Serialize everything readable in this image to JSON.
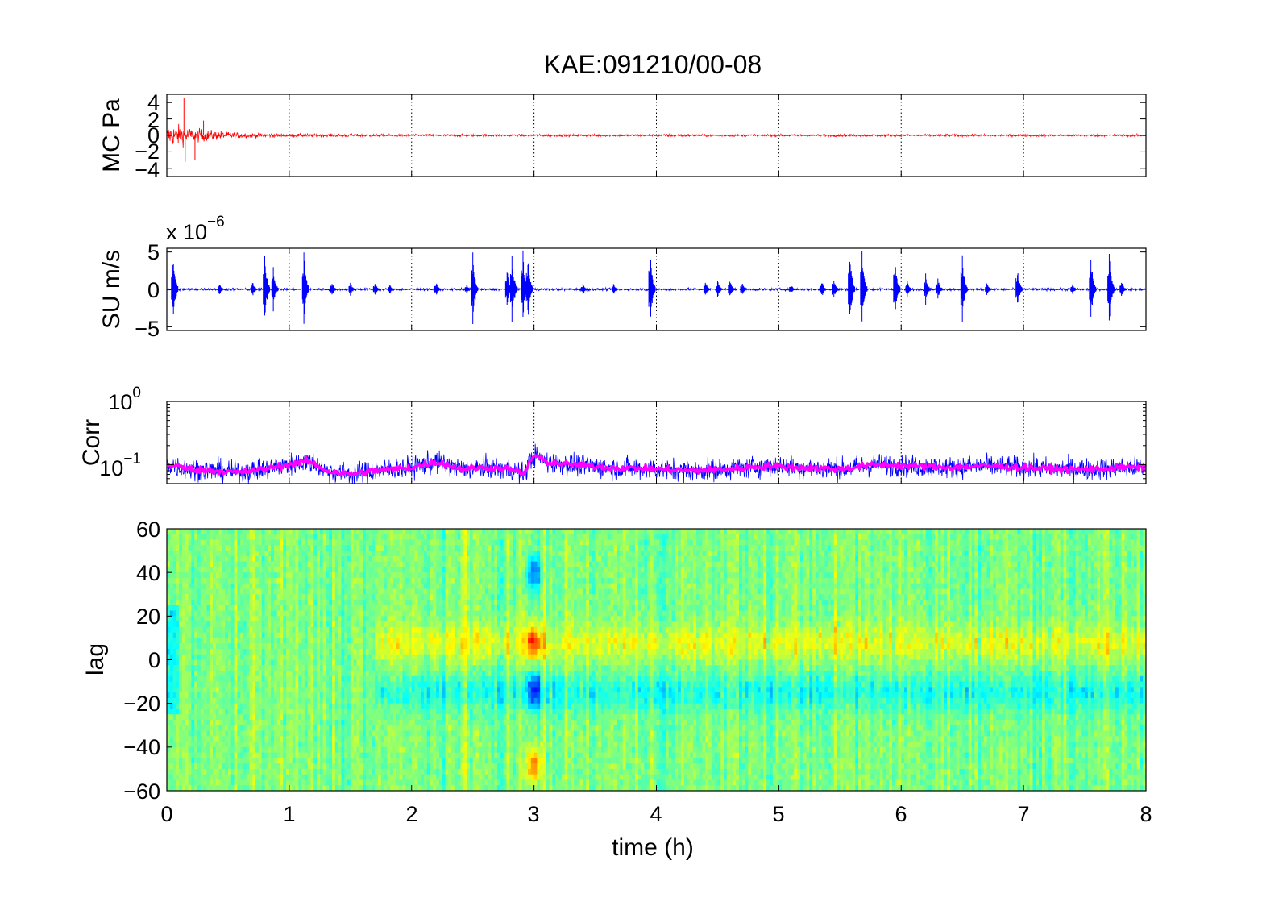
{
  "colors": {
    "mc_trace": "#ff0000",
    "su_trace": "#0000ff",
    "corr_raw": "#0000ff",
    "corr_smooth": "#ff00ff"
  },
  "chart_data": [
    {
      "type": "line",
      "title": "KAE:091210/00-08",
      "ylabel": "MC Pa",
      "xlim": [
        0,
        8
      ],
      "ylim": [
        -5,
        5
      ],
      "yticks": [
        "4",
        "2",
        "0",
        "−2",
        "−4"
      ],
      "grid": "x",
      "series": [
        {
          "color": "#ff0000",
          "envelope": {
            "x": [
              0,
              0.05,
              0.1,
              0.15,
              0.2,
              0.3,
              0.4,
              0.5,
              0.6,
              0.8,
              1.0,
              1.5,
              2.0,
              3.0,
              4.0,
              4.25,
              4.3,
              5.0,
              6.0,
              7.0,
              8.0
            ],
            "amplitude": [
              2.0,
              2.3,
              2.2,
              1.9,
              1.6,
              1.3,
              1.0,
              0.8,
              0.6,
              0.45,
              0.35,
              0.3,
              0.25,
              0.25,
              0.25,
              0.35,
              0.25,
              0.25,
              0.25,
              0.25,
              0.25
            ]
          },
          "spikes": [
            {
              "x": 0.14,
              "y": 4.6
            },
            {
              "x": 0.15,
              "y": -3.2
            },
            {
              "x": 0.23,
              "y": -3.0
            },
            {
              "x": 0.3,
              "y": 1.8
            }
          ]
        }
      ]
    },
    {
      "type": "line",
      "ylabel": "SU m/s",
      "y_multiplier": "x 10",
      "y_multiplier_exponent": "−6",
      "xlim": [
        0,
        8
      ],
      "ylim": [
        -5.5,
        5.5
      ],
      "yticks": [
        "5",
        "0",
        "−5"
      ],
      "grid": "x",
      "series": [
        {
          "color": "#0000ff",
          "baseline_amplitude": 0.15,
          "bursts": [
            {
              "x": 0.05,
              "amp": 5.3
            },
            {
              "x": 0.43,
              "amp": 1.0
            },
            {
              "x": 0.7,
              "amp": 1.2
            },
            {
              "x": 0.8,
              "amp": 5.0
            },
            {
              "x": 0.87,
              "amp": 3.2
            },
            {
              "x": 1.12,
              "amp": 5.0
            },
            {
              "x": 1.35,
              "amp": 1.0
            },
            {
              "x": 1.5,
              "amp": 1.0
            },
            {
              "x": 1.7,
              "amp": 1.0
            },
            {
              "x": 1.82,
              "amp": 0.8
            },
            {
              "x": 2.2,
              "amp": 1.0
            },
            {
              "x": 2.45,
              "amp": 0.7
            },
            {
              "x": 2.5,
              "amp": 5.2
            },
            {
              "x": 2.78,
              "amp": 3.0
            },
            {
              "x": 2.82,
              "amp": 5.3
            },
            {
              "x": 2.91,
              "amp": 5.3
            },
            {
              "x": 2.95,
              "amp": 5.0
            },
            {
              "x": 3.4,
              "amp": 0.8
            },
            {
              "x": 3.65,
              "amp": 0.8
            },
            {
              "x": 3.95,
              "amp": 5.3
            },
            {
              "x": 4.4,
              "amp": 1.2
            },
            {
              "x": 4.5,
              "amp": 1.3
            },
            {
              "x": 4.6,
              "amp": 1.5
            },
            {
              "x": 4.7,
              "amp": 1.0
            },
            {
              "x": 5.1,
              "amp": 0.8
            },
            {
              "x": 5.35,
              "amp": 1.3
            },
            {
              "x": 5.45,
              "amp": 1.5
            },
            {
              "x": 5.58,
              "amp": 5.3
            },
            {
              "x": 5.68,
              "amp": 5.3
            },
            {
              "x": 5.95,
              "amp": 4.5
            },
            {
              "x": 6.05,
              "amp": 1.3
            },
            {
              "x": 6.2,
              "amp": 2.2
            },
            {
              "x": 6.3,
              "amp": 1.5
            },
            {
              "x": 6.5,
              "amp": 5.0
            },
            {
              "x": 6.7,
              "amp": 1.0
            },
            {
              "x": 6.95,
              "amp": 3.0
            },
            {
              "x": 7.4,
              "amp": 0.8
            },
            {
              "x": 7.55,
              "amp": 5.0
            },
            {
              "x": 7.7,
              "amp": 5.3
            },
            {
              "x": 7.8,
              "amp": 1.3
            }
          ]
        }
      ]
    },
    {
      "type": "line",
      "ylabel": "Corr",
      "y_scale": "log",
      "xlim": [
        0,
        8
      ],
      "ylim": [
        0.05,
        1
      ],
      "yticks": [
        {
          "base": "10",
          "exponent": "0",
          "value": 1
        },
        {
          "base": "10",
          "exponent": "−1",
          "value": 0.1
        }
      ],
      "grid": "x",
      "series": [
        {
          "style": "raw",
          "color": "#0000ff",
          "x": [
            0,
            0.2,
            0.4,
            0.6,
            0.8,
            1.0,
            1.15,
            1.3,
            1.5,
            1.7,
            2.0,
            2.2,
            2.4,
            2.6,
            2.8,
            2.92,
            3.0,
            3.1,
            3.3,
            3.6,
            4.0,
            4.3,
            4.6,
            4.9,
            5.2,
            5.5,
            5.8,
            6.1,
            6.4,
            6.7,
            7.0,
            7.3,
            7.6,
            7.8,
            8.0
          ],
          "y": [
            0.1,
            0.085,
            0.08,
            0.075,
            0.085,
            0.1,
            0.115,
            0.08,
            0.07,
            0.08,
            0.09,
            0.11,
            0.085,
            0.09,
            0.085,
            0.07,
            0.14,
            0.11,
            0.1,
            0.09,
            0.085,
            0.08,
            0.085,
            0.095,
            0.09,
            0.085,
            0.1,
            0.095,
            0.09,
            0.095,
            0.09,
            0.085,
            0.085,
            0.09,
            0.09
          ]
        },
        {
          "style": "smoothed",
          "color": "#ff00ff",
          "x": [
            0,
            0.2,
            0.4,
            0.6,
            0.8,
            1.0,
            1.15,
            1.3,
            1.5,
            1.7,
            2.0,
            2.2,
            2.4,
            2.6,
            2.8,
            2.92,
            3.0,
            3.1,
            3.3,
            3.6,
            4.0,
            4.3,
            4.6,
            4.9,
            5.2,
            5.5,
            5.8,
            6.1,
            6.4,
            6.7,
            7.0,
            7.3,
            7.6,
            7.8,
            8.0
          ],
          "y": [
            0.1,
            0.085,
            0.08,
            0.075,
            0.085,
            0.1,
            0.115,
            0.08,
            0.07,
            0.08,
            0.09,
            0.11,
            0.085,
            0.09,
            0.085,
            0.07,
            0.14,
            0.11,
            0.1,
            0.09,
            0.085,
            0.08,
            0.085,
            0.095,
            0.09,
            0.085,
            0.1,
            0.095,
            0.09,
            0.095,
            0.09,
            0.085,
            0.085,
            0.09,
            0.09
          ]
        }
      ]
    },
    {
      "type": "heatmap",
      "xlabel": "time (h)",
      "ylabel": "lag",
      "xlim": [
        0,
        8
      ],
      "ylim": [
        -60,
        60
      ],
      "xticks": [
        "0",
        "1",
        "2",
        "3",
        "4",
        "5",
        "6",
        "7",
        "8"
      ],
      "yticks": [
        "60",
        "40",
        "20",
        "0",
        "−20",
        "−40",
        "−60"
      ],
      "colormap": "jet",
      "features": [
        {
          "x": 3.0,
          "lag_center": 8,
          "level": "high"
        },
        {
          "x": 3.0,
          "lag_center": -14,
          "level": "low"
        },
        {
          "x": 3.0,
          "lag_center": 40,
          "level": "low"
        },
        {
          "x": 3.0,
          "lag_center": -48,
          "level": "high"
        },
        {
          "x_range": [
            1.7,
            8
          ],
          "lag_center": 8,
          "level": "moderately high"
        },
        {
          "x_range": [
            1.7,
            8
          ],
          "lag_center": -15,
          "level": "moderately low"
        }
      ]
    }
  ]
}
